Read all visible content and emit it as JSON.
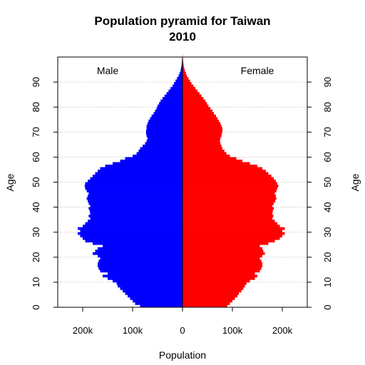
{
  "chart_data": {
    "type": "bar",
    "orientation": "horizontal-pyramid",
    "title": "Population pyramid for Taiwan",
    "subtitle": "2010",
    "xlabel": "Population",
    "ylabel_left": "Age",
    "ylabel_right": "Age",
    "series_labels": {
      "left": "Male",
      "right": "Female"
    },
    "colors": {
      "male": "#0000ff",
      "female": "#ff0000"
    },
    "x_tick_values": [
      -200000,
      -100000,
      0,
      100000,
      200000
    ],
    "x_tick_labels": [
      "200k",
      "100k",
      "0",
      "100k",
      "200k"
    ],
    "xlim": [
      -250000,
      250000
    ],
    "y_tick_values": [
      0,
      10,
      20,
      30,
      40,
      50,
      60,
      70,
      80,
      90
    ],
    "y_tick_labels": [
      "0",
      "10",
      "20",
      "30",
      "40",
      "50",
      "60",
      "70",
      "80",
      "90"
    ],
    "ylim": [
      0,
      100
    ],
    "grid": true,
    "ages": [
      0,
      1,
      2,
      3,
      4,
      5,
      6,
      7,
      8,
      9,
      10,
      11,
      12,
      13,
      14,
      15,
      16,
      17,
      18,
      19,
      20,
      21,
      22,
      23,
      24,
      25,
      26,
      27,
      28,
      29,
      30,
      31,
      32,
      33,
      34,
      35,
      36,
      37,
      38,
      39,
      40,
      41,
      42,
      43,
      44,
      45,
      46,
      47,
      48,
      49,
      50,
      51,
      52,
      53,
      54,
      55,
      56,
      57,
      58,
      59,
      60,
      61,
      62,
      63,
      64,
      65,
      66,
      67,
      68,
      69,
      70,
      71,
      72,
      73,
      74,
      75,
      76,
      77,
      78,
      79,
      80,
      81,
      82,
      83,
      84,
      85,
      86,
      87,
      88,
      89,
      90,
      91,
      92,
      93,
      94,
      95,
      96,
      97,
      98,
      99,
      100
    ],
    "male": [
      85000,
      95000,
      100000,
      105000,
      110000,
      115000,
      120000,
      125000,
      130000,
      132000,
      140000,
      150000,
      160000,
      150000,
      165000,
      168000,
      170000,
      170000,
      168000,
      165000,
      170000,
      180000,
      175000,
      170000,
      160000,
      180000,
      195000,
      200000,
      205000,
      210000,
      205000,
      210000,
      200000,
      195000,
      190000,
      185000,
      188000,
      185000,
      186000,
      188000,
      185000,
      188000,
      190000,
      192000,
      190000,
      188000,
      192000,
      195000,
      196000,
      195000,
      190000,
      185000,
      180000,
      175000,
      170000,
      165000,
      155000,
      140000,
      125000,
      115000,
      100000,
      92000,
      88000,
      85000,
      80000,
      75000,
      72000,
      70000,
      72000,
      73000,
      73000,
      72000,
      72000,
      70000,
      68000,
      65000,
      62000,
      58000,
      55000,
      52000,
      50000,
      47000,
      44000,
      40000,
      36000,
      32000,
      28000,
      24000,
      20000,
      17000,
      14000,
      11000,
      8000,
      6000,
      4000,
      3000,
      2000,
      1500,
      1000,
      500,
      200
    ],
    "female": [
      90000,
      95000,
      100000,
      105000,
      110000,
      113000,
      118000,
      122000,
      125000,
      128000,
      135000,
      145000,
      150000,
      145000,
      155000,
      158000,
      160000,
      160000,
      158000,
      155000,
      160000,
      165000,
      162000,
      160000,
      155000,
      172000,
      185000,
      195000,
      200000,
      205000,
      200000,
      205000,
      195000,
      190000,
      185000,
      180000,
      182000,
      180000,
      181000,
      183000,
      180000,
      183000,
      186000,
      188000,
      187000,
      185000,
      188000,
      190000,
      192000,
      190000,
      187000,
      183000,
      178000,
      172000,
      167000,
      160000,
      150000,
      135000,
      120000,
      108000,
      95000,
      88000,
      84000,
      80000,
      78000,
      76000,
      75000,
      76000,
      78000,
      79000,
      80000,
      80000,
      78000,
      76000,
      73000,
      70000,
      67000,
      63000,
      60000,
      56000,
      52000,
      49000,
      46000,
      42000,
      38000,
      34000,
      30000,
      26000,
      22000,
      18000,
      15000,
      12000,
      9000,
      7000,
      5000,
      3500,
      2500,
      1800,
      1200,
      700,
      300
    ]
  }
}
